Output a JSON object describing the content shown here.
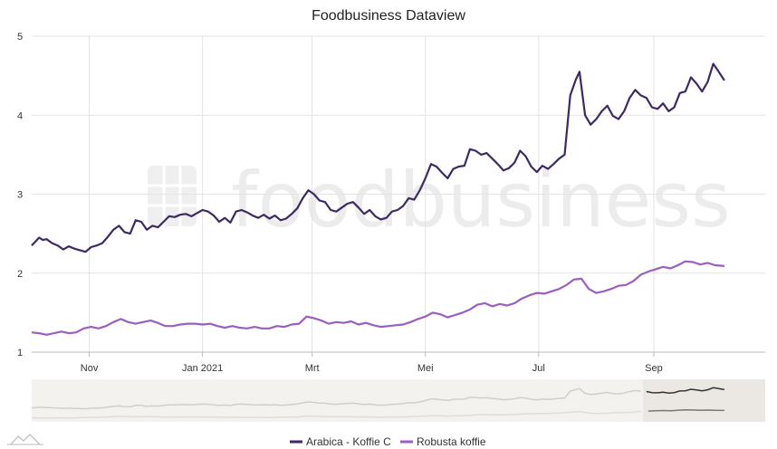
{
  "chart_data": {
    "type": "line",
    "title": "Foodbusiness Dataview",
    "watermark": "foodbusiness",
    "xlabel": "",
    "ylabel": "",
    "x_range": [
      "2020-10-01",
      "2021-10-31"
    ],
    "ylim": [
      1,
      5
    ],
    "yticks": [
      "1",
      "2",
      "3",
      "4",
      "5"
    ],
    "xticks": [
      {
        "label": "Nov",
        "date": "2020-11-01"
      },
      {
        "label": "Jan 2021",
        "date": "2021-01-01"
      },
      {
        "label": "Mrt",
        "date": "2021-03-01"
      },
      {
        "label": "Mei",
        "date": "2021-05-01"
      },
      {
        "label": "Jul",
        "date": "2021-07-01"
      },
      {
        "label": "Sep",
        "date": "2021-09-01"
      }
    ],
    "grid": true,
    "legend_position": "bottom",
    "colors": {
      "arabica": "#3d2a63",
      "robusta": "#9a5fc0",
      "grid": "#e3e3e3",
      "navigator_mask": "#f1efeb"
    },
    "series": [
      {
        "name": "Arabica - Koffie C",
        "color": "#3d2a63",
        "points": [
          [
            "2020-10-01",
            2.35
          ],
          [
            "2020-10-03",
            2.4
          ],
          [
            "2020-10-05",
            2.45
          ],
          [
            "2020-10-07",
            2.42
          ],
          [
            "2020-10-09",
            2.43
          ],
          [
            "2020-10-12",
            2.38
          ],
          [
            "2020-10-15",
            2.35
          ],
          [
            "2020-10-18",
            2.3
          ],
          [
            "2020-10-21",
            2.34
          ],
          [
            "2020-10-24",
            2.31
          ],
          [
            "2020-10-27",
            2.29
          ],
          [
            "2020-10-30",
            2.27
          ],
          [
            "2020-11-02",
            2.33
          ],
          [
            "2020-11-05",
            2.35
          ],
          [
            "2020-11-08",
            2.38
          ],
          [
            "2020-11-11",
            2.46
          ],
          [
            "2020-11-14",
            2.55
          ],
          [
            "2020-11-17",
            2.6
          ],
          [
            "2020-11-20",
            2.52
          ],
          [
            "2020-11-23",
            2.5
          ],
          [
            "2020-11-26",
            2.67
          ],
          [
            "2020-11-29",
            2.65
          ],
          [
            "2020-12-02",
            2.55
          ],
          [
            "2020-12-05",
            2.6
          ],
          [
            "2020-12-08",
            2.58
          ],
          [
            "2020-12-11",
            2.65
          ],
          [
            "2020-12-14",
            2.72
          ],
          [
            "2020-12-17",
            2.71
          ],
          [
            "2020-12-20",
            2.74
          ],
          [
            "2020-12-23",
            2.75
          ],
          [
            "2020-12-26",
            2.72
          ],
          [
            "2020-12-29",
            2.76
          ],
          [
            "2021-01-01",
            2.8
          ],
          [
            "2021-01-04",
            2.78
          ],
          [
            "2021-01-07",
            2.73
          ],
          [
            "2021-01-10",
            2.65
          ],
          [
            "2021-01-13",
            2.7
          ],
          [
            "2021-01-16",
            2.64
          ],
          [
            "2021-01-19",
            2.78
          ],
          [
            "2021-01-22",
            2.8
          ],
          [
            "2021-01-25",
            2.77
          ],
          [
            "2021-01-28",
            2.73
          ],
          [
            "2021-01-31",
            2.7
          ],
          [
            "2021-02-03",
            2.74
          ],
          [
            "2021-02-06",
            2.69
          ],
          [
            "2021-02-09",
            2.73
          ],
          [
            "2021-02-12",
            2.67
          ],
          [
            "2021-02-15",
            2.69
          ],
          [
            "2021-02-18",
            2.75
          ],
          [
            "2021-02-21",
            2.82
          ],
          [
            "2021-02-24",
            2.95
          ],
          [
            "2021-02-27",
            3.05
          ],
          [
            "2021-03-02",
            3.0
          ],
          [
            "2021-03-05",
            2.92
          ],
          [
            "2021-03-08",
            2.9
          ],
          [
            "2021-03-11",
            2.8
          ],
          [
            "2021-03-14",
            2.78
          ],
          [
            "2021-03-17",
            2.83
          ],
          [
            "2021-03-20",
            2.88
          ],
          [
            "2021-03-23",
            2.9
          ],
          [
            "2021-03-26",
            2.83
          ],
          [
            "2021-03-29",
            2.75
          ],
          [
            "2021-04-01",
            2.8
          ],
          [
            "2021-04-04",
            2.72
          ],
          [
            "2021-04-07",
            2.68
          ],
          [
            "2021-04-10",
            2.7
          ],
          [
            "2021-04-13",
            2.78
          ],
          [
            "2021-04-16",
            2.8
          ],
          [
            "2021-04-19",
            2.85
          ],
          [
            "2021-04-22",
            2.95
          ],
          [
            "2021-04-25",
            2.93
          ],
          [
            "2021-04-28",
            3.05
          ],
          [
            "2021-05-01",
            3.2
          ],
          [
            "2021-05-04",
            3.38
          ],
          [
            "2021-05-07",
            3.35
          ],
          [
            "2021-05-10",
            3.27
          ],
          [
            "2021-05-13",
            3.2
          ],
          [
            "2021-05-16",
            3.32
          ],
          [
            "2021-05-19",
            3.35
          ],
          [
            "2021-05-22",
            3.36
          ],
          [
            "2021-05-25",
            3.57
          ],
          [
            "2021-05-28",
            3.55
          ],
          [
            "2021-05-31",
            3.5
          ],
          [
            "2021-06-03",
            3.52
          ],
          [
            "2021-06-06",
            3.45
          ],
          [
            "2021-06-09",
            3.38
          ],
          [
            "2021-06-12",
            3.3
          ],
          [
            "2021-06-15",
            3.33
          ],
          [
            "2021-06-18",
            3.4
          ],
          [
            "2021-06-21",
            3.55
          ],
          [
            "2021-06-24",
            3.48
          ],
          [
            "2021-06-27",
            3.35
          ],
          [
            "2021-06-30",
            3.28
          ],
          [
            "2021-07-03",
            3.36
          ],
          [
            "2021-07-06",
            3.32
          ],
          [
            "2021-07-09",
            3.38
          ],
          [
            "2021-07-12",
            3.45
          ],
          [
            "2021-07-15",
            3.5
          ],
          [
            "2021-07-18",
            4.25
          ],
          [
            "2021-07-21",
            4.45
          ],
          [
            "2021-07-23",
            4.55
          ],
          [
            "2021-07-26",
            4.0
          ],
          [
            "2021-07-29",
            3.88
          ],
          [
            "2021-08-01",
            3.95
          ],
          [
            "2021-08-04",
            4.05
          ],
          [
            "2021-08-07",
            4.12
          ],
          [
            "2021-08-10",
            3.99
          ],
          [
            "2021-08-13",
            3.95
          ],
          [
            "2021-08-16",
            4.05
          ],
          [
            "2021-08-19",
            4.22
          ],
          [
            "2021-08-22",
            4.32
          ],
          [
            "2021-08-25",
            4.25
          ],
          [
            "2021-08-28",
            4.22
          ],
          [
            "2021-08-31",
            4.1
          ],
          [
            "2021-09-03",
            4.08
          ],
          [
            "2021-09-06",
            4.15
          ],
          [
            "2021-09-09",
            4.05
          ],
          [
            "2021-09-12",
            4.1
          ],
          [
            "2021-09-15",
            4.28
          ],
          [
            "2021-09-18",
            4.3
          ],
          [
            "2021-09-21",
            4.48
          ],
          [
            "2021-09-24",
            4.4
          ],
          [
            "2021-09-27",
            4.3
          ],
          [
            "2021-09-30",
            4.42
          ],
          [
            "2021-10-03",
            4.65
          ],
          [
            "2021-10-06",
            4.55
          ],
          [
            "2021-10-09",
            4.44
          ]
        ]
      },
      {
        "name": "Robusta koffie",
        "color": "#9a5fc0",
        "points": [
          [
            "2020-10-01",
            1.25
          ],
          [
            "2020-10-05",
            1.24
          ],
          [
            "2020-10-09",
            1.22
          ],
          [
            "2020-10-13",
            1.24
          ],
          [
            "2020-10-17",
            1.26
          ],
          [
            "2020-10-21",
            1.24
          ],
          [
            "2020-10-25",
            1.25
          ],
          [
            "2020-10-29",
            1.3
          ],
          [
            "2020-11-02",
            1.32
          ],
          [
            "2020-11-06",
            1.3
          ],
          [
            "2020-11-10",
            1.33
          ],
          [
            "2020-11-14",
            1.38
          ],
          [
            "2020-11-18",
            1.42
          ],
          [
            "2020-11-22",
            1.38
          ],
          [
            "2020-11-26",
            1.36
          ],
          [
            "2020-11-30",
            1.38
          ],
          [
            "2020-12-04",
            1.4
          ],
          [
            "2020-12-08",
            1.37
          ],
          [
            "2020-12-12",
            1.33
          ],
          [
            "2020-12-16",
            1.33
          ],
          [
            "2020-12-20",
            1.35
          ],
          [
            "2020-12-24",
            1.36
          ],
          [
            "2020-12-28",
            1.36
          ],
          [
            "2021-01-01",
            1.35
          ],
          [
            "2021-01-05",
            1.36
          ],
          [
            "2021-01-09",
            1.33
          ],
          [
            "2021-01-13",
            1.31
          ],
          [
            "2021-01-17",
            1.33
          ],
          [
            "2021-01-21",
            1.31
          ],
          [
            "2021-01-25",
            1.3
          ],
          [
            "2021-01-29",
            1.32
          ],
          [
            "2021-02-02",
            1.3
          ],
          [
            "2021-02-06",
            1.3
          ],
          [
            "2021-02-10",
            1.33
          ],
          [
            "2021-02-14",
            1.32
          ],
          [
            "2021-02-18",
            1.35
          ],
          [
            "2021-02-22",
            1.36
          ],
          [
            "2021-02-26",
            1.45
          ],
          [
            "2021-03-02",
            1.43
          ],
          [
            "2021-03-06",
            1.4
          ],
          [
            "2021-03-10",
            1.36
          ],
          [
            "2021-03-14",
            1.38
          ],
          [
            "2021-03-18",
            1.37
          ],
          [
            "2021-03-22",
            1.39
          ],
          [
            "2021-03-26",
            1.35
          ],
          [
            "2021-03-30",
            1.37
          ],
          [
            "2021-04-03",
            1.34
          ],
          [
            "2021-04-07",
            1.32
          ],
          [
            "2021-04-11",
            1.33
          ],
          [
            "2021-04-15",
            1.34
          ],
          [
            "2021-04-19",
            1.35
          ],
          [
            "2021-04-23",
            1.38
          ],
          [
            "2021-04-27",
            1.42
          ],
          [
            "2021-05-01",
            1.45
          ],
          [
            "2021-05-05",
            1.5
          ],
          [
            "2021-05-09",
            1.48
          ],
          [
            "2021-05-13",
            1.44
          ],
          [
            "2021-05-17",
            1.47
          ],
          [
            "2021-05-21",
            1.5
          ],
          [
            "2021-05-25",
            1.54
          ],
          [
            "2021-05-29",
            1.6
          ],
          [
            "2021-06-02",
            1.62
          ],
          [
            "2021-06-06",
            1.58
          ],
          [
            "2021-06-10",
            1.61
          ],
          [
            "2021-06-14",
            1.59
          ],
          [
            "2021-06-18",
            1.62
          ],
          [
            "2021-06-22",
            1.68
          ],
          [
            "2021-06-26",
            1.72
          ],
          [
            "2021-06-30",
            1.75
          ],
          [
            "2021-07-04",
            1.74
          ],
          [
            "2021-07-08",
            1.77
          ],
          [
            "2021-07-12",
            1.8
          ],
          [
            "2021-07-16",
            1.85
          ],
          [
            "2021-07-20",
            1.92
          ],
          [
            "2021-07-24",
            1.93
          ],
          [
            "2021-07-28",
            1.8
          ],
          [
            "2021-08-01",
            1.75
          ],
          [
            "2021-08-05",
            1.77
          ],
          [
            "2021-08-09",
            1.8
          ],
          [
            "2021-08-13",
            1.84
          ],
          [
            "2021-08-17",
            1.85
          ],
          [
            "2021-08-21",
            1.9
          ],
          [
            "2021-08-25",
            1.98
          ],
          [
            "2021-08-29",
            2.02
          ],
          [
            "2021-09-02",
            2.05
          ],
          [
            "2021-09-06",
            2.08
          ],
          [
            "2021-09-10",
            2.06
          ],
          [
            "2021-09-14",
            2.1
          ],
          [
            "2021-09-18",
            2.15
          ],
          [
            "2021-09-22",
            2.14
          ],
          [
            "2021-09-26",
            2.11
          ],
          [
            "2021-09-30",
            2.13
          ],
          [
            "2021-10-04",
            2.1
          ],
          [
            "2021-10-09",
            2.09
          ]
        ]
      }
    ]
  }
}
